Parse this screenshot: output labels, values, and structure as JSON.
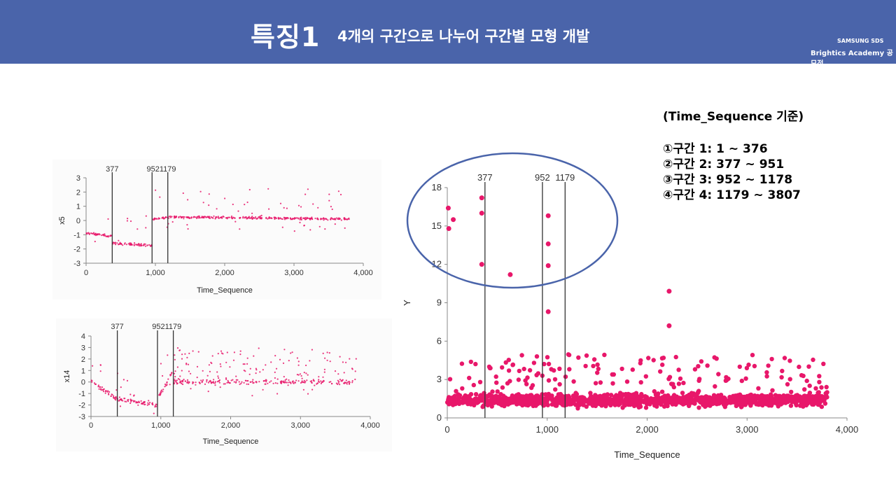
{
  "header": {
    "title": "특징1",
    "subtitle": "4개의 구간으로 나누어 구간별 모형 개발",
    "brand_line1": "SAMSUNG SDS",
    "brand_line2": "Brightics Academy 공모전",
    "bg_color": "#4a64aa"
  },
  "info": {
    "heading": "(Time_Sequence 기준)",
    "items": [
      "①구간 1: 1 ~ 376",
      "②구간 2: 377 ~ 951",
      "③구간 3: 952 ~ 1178",
      "④구간 4: 1179 ~ 3807"
    ]
  },
  "chart_data": [
    {
      "type": "scatter",
      "xlabel": "Time_Sequence",
      "ylabel": "x5",
      "xlim": [
        0,
        4000
      ],
      "ylim": [
        -3,
        3
      ],
      "xticks": [
        "0",
        "1,000",
        "2,000",
        "3,000",
        "4,000"
      ],
      "yticks": [
        "3",
        "2",
        "1",
        "0",
        "-1",
        "-2",
        "-3"
      ],
      "vlines": [
        377,
        952,
        1179
      ],
      "vline_labels": [
        "377",
        "9521179"
      ],
      "color": "#e8176a",
      "segments": [
        {
          "x": [
            0,
            376
          ],
          "y": [
            -0.9,
            -1.1
          ]
        },
        {
          "x": [
            377,
            951
          ],
          "y": [
            -1.6,
            -1.75
          ]
        },
        {
          "x": [
            952,
            1178
          ],
          "y": [
            0.1,
            0.2
          ]
        },
        {
          "x": [
            1179,
            3807
          ],
          "y": [
            0.25,
            0.1
          ]
        }
      ]
    },
    {
      "type": "scatter",
      "xlabel": "Time_Sequence",
      "ylabel": "x14",
      "xlim": [
        0,
        4000
      ],
      "ylim": [
        -3,
        4
      ],
      "xticks": [
        "0",
        "1,000",
        "2,000",
        "3,000",
        "4,000"
      ],
      "yticks": [
        "4",
        "3",
        "2",
        "1",
        "0",
        "-1",
        "-2",
        "-3"
      ],
      "vlines": [
        377,
        952,
        1179
      ],
      "vline_labels": [
        "377",
        "9521179"
      ],
      "color": "#e8176a",
      "segments": [
        {
          "x": [
            0,
            376
          ],
          "y": [
            0,
            -1.5
          ]
        },
        {
          "x": [
            377,
            951
          ],
          "y": [
            -1.5,
            -2
          ]
        },
        {
          "x": [
            952,
            1178
          ],
          "y": [
            -1.5,
            1
          ]
        },
        {
          "x": [
            1179,
            3807
          ],
          "y": [
            0,
            0
          ]
        }
      ]
    },
    {
      "type": "scatter",
      "xlabel": "Time_Sequence",
      "ylabel": "Y",
      "xlim": [
        0,
        4000
      ],
      "ylim": [
        0,
        18
      ],
      "xticks": [
        "0",
        "1,000",
        "2,000",
        "3,000",
        "4,000"
      ],
      "yticks": [
        "18",
        "15",
        "12",
        "9",
        "6",
        "3",
        "0"
      ],
      "vlines": [
        377,
        952,
        1179
      ],
      "vline_labels": [
        "377",
        "952",
        "1179"
      ],
      "color": "#e8176a",
      "outliers": [
        {
          "x": 10,
          "y": 16.4
        },
        {
          "x": 15,
          "y": 14.8
        },
        {
          "x": 60,
          "y": 15.5
        },
        {
          "x": 345,
          "y": 17.2
        },
        {
          "x": 345,
          "y": 16.0
        },
        {
          "x": 345,
          "y": 12.0
        },
        {
          "x": 630,
          "y": 11.2
        },
        {
          "x": 1010,
          "y": 15.8
        },
        {
          "x": 1010,
          "y": 13.6
        },
        {
          "x": 1010,
          "y": 11.9
        },
        {
          "x": 1010,
          "y": 8.3
        },
        {
          "x": 2220,
          "y": 9.9
        },
        {
          "x": 2220,
          "y": 7.2
        }
      ]
    }
  ]
}
